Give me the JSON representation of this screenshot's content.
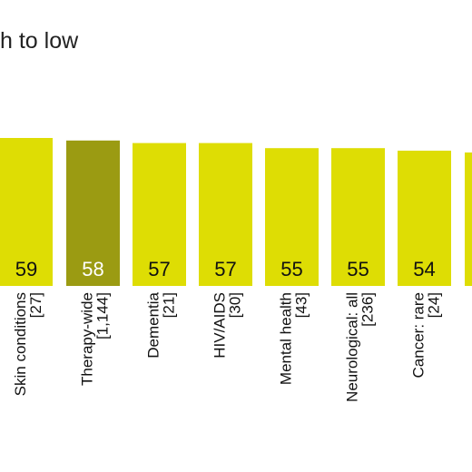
{
  "title_fragment": "h to low",
  "chart_data": {
    "type": "bar",
    "categories": [
      "Skin conditions [27]",
      "Therapy-wide [1,144]",
      "Dementia [21]",
      "HIV/AIDS [30]",
      "Mental health [43]",
      "Neurological: all [236]",
      "Cancer: rare [24]"
    ],
    "category_lines": [
      [
        "Skin conditions",
        "[27]"
      ],
      [
        "Therapy-wide",
        "[1,144]"
      ],
      [
        "Dementia",
        "[21]"
      ],
      [
        "HIV/AIDS",
        "[30]"
      ],
      [
        "Mental health",
        "[43]"
      ],
      [
        "Neurological: all",
        "[236]"
      ],
      [
        "Cancer: rare",
        "[24]"
      ]
    ],
    "values": [
      59,
      58,
      57,
      57,
      55,
      55,
      54
    ],
    "highlight_index": 1,
    "colors": {
      "bar": "#dedd04",
      "highlight": "#9b9b12",
      "value_text": "#111111",
      "highlight_text": "#ffffff"
    }
  }
}
